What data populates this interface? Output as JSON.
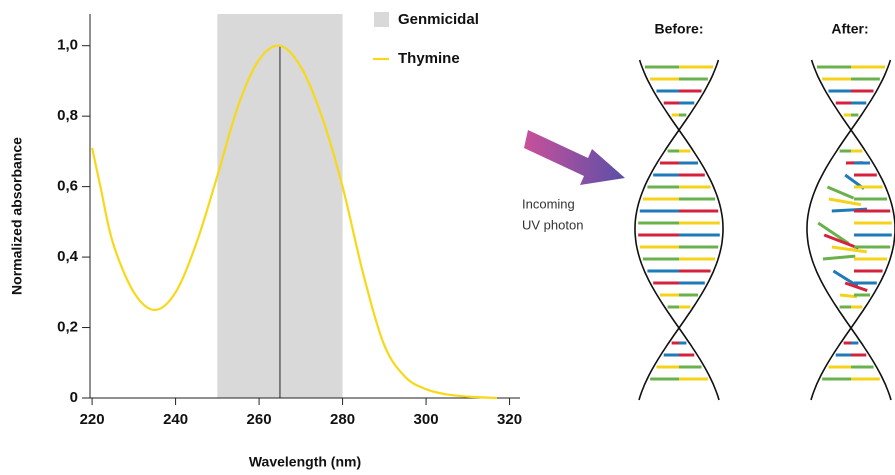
{
  "chart_data": {
    "type": "line",
    "x_label": "Wavelength (nm)",
    "y_label": "Normalized absorbance",
    "x": [
      220,
      222,
      225,
      230,
      235,
      240,
      245,
      250,
      255,
      260,
      265,
      270,
      275,
      280,
      285,
      290,
      295,
      300,
      305,
      310,
      317
    ],
    "series": [
      {
        "name": "Thymine",
        "color": "#f7d81a",
        "values": [
          0.71,
          0.6,
          0.44,
          0.3,
          0.25,
          0.3,
          0.44,
          0.63,
          0.83,
          0.96,
          1.0,
          0.94,
          0.8,
          0.6,
          0.35,
          0.15,
          0.06,
          0.025,
          0.01,
          0.004,
          0.0
        ]
      }
    ],
    "span": {
      "name": "Genmicidal",
      "range": [
        250,
        280
      ],
      "color": "#d9d9d9"
    },
    "vline": 265,
    "xlim": [
      219.5,
      322.5
    ],
    "ylim": [
      0,
      1.09
    ],
    "xticks": [
      220,
      240,
      260,
      280,
      300,
      320
    ],
    "yticks": [
      0,
      {
        "value": 0.2,
        "label": "0,2"
      },
      {
        "value": 0.4,
        "label": "0,4"
      },
      {
        "value": 0.6,
        "label": "0,6"
      },
      {
        "value": 0.8,
        "label": "0,8"
      },
      {
        "value": 1.0,
        "label": "1,0"
      }
    ]
  },
  "diagram": {
    "before_label": "Before:",
    "after_label": "After:",
    "photon_label": [
      "Incoming",
      "UV photon"
    ]
  }
}
